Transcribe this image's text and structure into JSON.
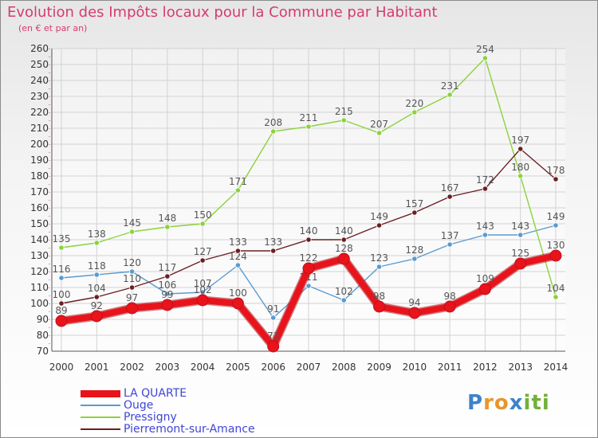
{
  "header": {
    "title": "Evolution des Impôts locaux pour la Commune par Habitant",
    "subtitle": "(en € et par an)"
  },
  "brand": {
    "letters": [
      "P",
      "r",
      "o",
      "x",
      "i",
      "t",
      "i"
    ]
  },
  "colors": {
    "title": "#d63a72",
    "legend_text": "#3f46d6",
    "grid": "#d2d2d2",
    "axis_text": "#333333",
    "logo": [
      "#3d83c9",
      "#e8962a",
      "#e8962a",
      "#3d83c9",
      "#72b03a",
      "#72b03a",
      "#72b03a"
    ]
  },
  "chart_data": {
    "type": "line",
    "title": "Evolution des Impôts locaux pour la Commune par Habitant",
    "ylabel": "(en € et par an)",
    "xlabel": "",
    "x": [
      "2000",
      "2001",
      "2002",
      "2003",
      "2004",
      "2005",
      "2006",
      "2007",
      "2008",
      "2009",
      "2010",
      "2011",
      "2012",
      "2013",
      "2014"
    ],
    "ylim": [
      70,
      260
    ],
    "yticks": [
      70,
      80,
      90,
      100,
      110,
      120,
      130,
      140,
      150,
      160,
      170,
      180,
      190,
      200,
      210,
      220,
      230,
      240,
      250,
      260
    ],
    "grid": true,
    "legend_position": "bottom-left",
    "series": [
      {
        "name": "LA QUARTE",
        "color": "#e8131b",
        "emphasis": true,
        "values": [
          89,
          92,
          97,
          99,
          102,
          100,
          73,
          122,
          128,
          98,
          94,
          98,
          109,
          125,
          130
        ]
      },
      {
        "name": "Ouge",
        "color": "#5a9bd0",
        "emphasis": false,
        "values": [
          116,
          118,
          120,
          106,
          107,
          124,
          91,
          111,
          102,
          123,
          128,
          137,
          143,
          143,
          149
        ]
      },
      {
        "name": "Pressigny",
        "color": "#8cd23c",
        "emphasis": false,
        "values": [
          135,
          138,
          145,
          148,
          150,
          171,
          208,
          211,
          215,
          207,
          220,
          231,
          254,
          180,
          104
        ]
      },
      {
        "name": "Pierremont-sur-Amance",
        "color": "#6b1f23",
        "emphasis": false,
        "values": [
          100,
          104,
          110,
          117,
          127,
          133,
          133,
          140,
          140,
          149,
          157,
          167,
          172,
          197,
          178
        ]
      }
    ]
  }
}
